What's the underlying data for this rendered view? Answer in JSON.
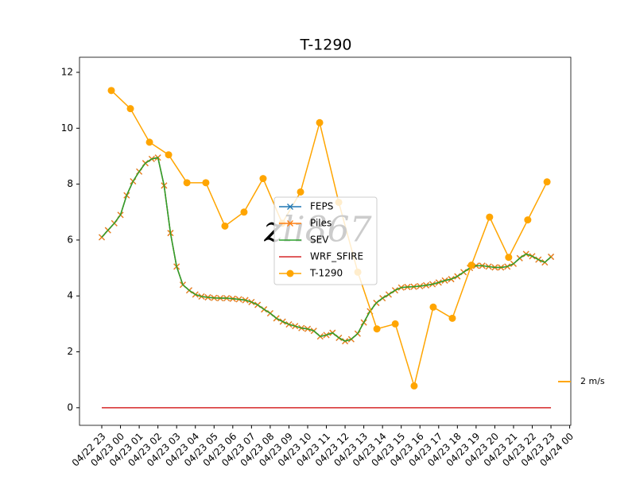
{
  "chart_data": {
    "type": "line",
    "title": "T-1290",
    "xlim": [
      -1.19,
      25.06
    ],
    "xticks": [
      {
        "value": 0,
        "label": "04/22 23"
      },
      {
        "value": 1,
        "label": "04/23 00"
      },
      {
        "value": 2,
        "label": "04/23 01"
      },
      {
        "value": 3,
        "label": "04/23 02"
      },
      {
        "value": 4,
        "label": "04/23 03"
      },
      {
        "value": 5,
        "label": "04/23 04"
      },
      {
        "value": 6,
        "label": "04/23 05"
      },
      {
        "value": 7,
        "label": "04/23 06"
      },
      {
        "value": 8,
        "label": "04/23 07"
      },
      {
        "value": 9,
        "label": "04/23 08"
      },
      {
        "value": 10,
        "label": "04/23 09"
      },
      {
        "value": 11,
        "label": "04/23 10"
      },
      {
        "value": 12,
        "label": "04/23 11"
      },
      {
        "value": 13,
        "label": "04/23 12"
      },
      {
        "value": 14,
        "label": "04/23 13"
      },
      {
        "value": 15,
        "label": "04/23 14"
      },
      {
        "value": 16,
        "label": "04/23 15"
      },
      {
        "value": 17,
        "label": "04/23 16"
      },
      {
        "value": 18,
        "label": "04/23 17"
      },
      {
        "value": 19,
        "label": "04/23 18"
      },
      {
        "value": 20,
        "label": "04/23 19"
      },
      {
        "value": 21,
        "label": "04/23 20"
      },
      {
        "value": 22,
        "label": "04/23 21"
      },
      {
        "value": 23,
        "label": "04/23 22"
      },
      {
        "value": 24,
        "label": "04/23 23"
      },
      {
        "value": 25,
        "label": "04/24 00"
      }
    ],
    "ylim": [
      -0.63,
      12.54
    ],
    "yticks": [
      0,
      2,
      4,
      6,
      8,
      10,
      12
    ],
    "legend_loc": "center",
    "series": [
      {
        "name": "FEPS",
        "color": "#1f77b4",
        "marker": "x",
        "x": [
          0,
          0.33,
          0.67,
          1,
          1.33,
          1.67,
          2,
          2.33,
          2.67,
          3,
          3.33,
          3.67,
          4,
          4.33,
          4.67,
          5,
          5.33,
          5.67,
          6,
          6.33,
          6.67,
          7,
          7.33,
          7.67,
          8,
          8.33,
          8.67,
          9,
          9.33,
          9.67,
          10,
          10.33,
          10.67,
          11,
          11.33,
          11.67,
          12,
          12.33,
          12.67,
          13,
          13.33,
          13.67,
          14,
          14.33,
          14.67,
          15,
          15.33,
          15.67,
          16,
          16.33,
          16.67,
          17,
          17.33,
          17.67,
          18,
          18.33,
          18.67,
          19,
          19.33,
          19.67,
          20,
          20.33,
          20.67,
          21,
          21.33,
          21.67,
          22,
          22.33,
          22.67,
          23,
          23.33,
          23.67,
          24
        ],
        "values": [
          6.1,
          6.35,
          6.6,
          6.9,
          7.6,
          8.1,
          8.45,
          8.75,
          8.9,
          8.95,
          7.95,
          6.25,
          5.05,
          4.4,
          4.2,
          4.05,
          3.98,
          3.95,
          3.93,
          3.92,
          3.92,
          3.9,
          3.88,
          3.85,
          3.78,
          3.68,
          3.52,
          3.38,
          3.2,
          3.08,
          2.98,
          2.92,
          2.85,
          2.82,
          2.75,
          2.55,
          2.6,
          2.68,
          2.5,
          2.38,
          2.45,
          2.65,
          3.05,
          3.45,
          3.75,
          3.92,
          4.05,
          4.2,
          4.3,
          4.32,
          4.33,
          4.35,
          4.38,
          4.42,
          4.48,
          4.55,
          4.6,
          4.7,
          4.85,
          5.0,
          5.08,
          5.08,
          5.05,
          5.02,
          5.02,
          5.05,
          5.15,
          5.35,
          5.5,
          5.42,
          5.3,
          5.2,
          5.4
        ]
      },
      {
        "name": "Piles",
        "color": "#ff7f0e",
        "marker": "x",
        "x": [
          0,
          0.33,
          0.67,
          1,
          1.33,
          1.67,
          2,
          2.33,
          2.67,
          3,
          3.33,
          3.67,
          4,
          4.33,
          4.67,
          5,
          5.33,
          5.67,
          6,
          6.33,
          6.67,
          7,
          7.33,
          7.67,
          8,
          8.33,
          8.67,
          9,
          9.33,
          9.67,
          10,
          10.33,
          10.67,
          11,
          11.33,
          11.67,
          12,
          12.33,
          12.67,
          13,
          13.33,
          13.67,
          14,
          14.33,
          14.67,
          15,
          15.33,
          15.67,
          16,
          16.33,
          16.67,
          17,
          17.33,
          17.67,
          18,
          18.33,
          18.67,
          19,
          19.33,
          19.67,
          20,
          20.33,
          20.67,
          21,
          21.33,
          21.67,
          22,
          22.33,
          22.67,
          23,
          23.33,
          23.67,
          24
        ],
        "values": [
          6.1,
          6.35,
          6.6,
          6.9,
          7.6,
          8.1,
          8.45,
          8.75,
          8.9,
          8.95,
          7.95,
          6.25,
          5.05,
          4.4,
          4.2,
          4.05,
          3.98,
          3.95,
          3.93,
          3.92,
          3.92,
          3.9,
          3.88,
          3.85,
          3.78,
          3.68,
          3.52,
          3.38,
          3.2,
          3.08,
          2.98,
          2.92,
          2.85,
          2.82,
          2.75,
          2.55,
          2.6,
          2.68,
          2.5,
          2.38,
          2.45,
          2.65,
          3.05,
          3.45,
          3.75,
          3.92,
          4.05,
          4.2,
          4.3,
          4.32,
          4.33,
          4.35,
          4.38,
          4.42,
          4.48,
          4.55,
          4.6,
          4.7,
          4.85,
          5.0,
          5.08,
          5.08,
          5.05,
          5.02,
          5.02,
          5.05,
          5.15,
          5.35,
          5.5,
          5.42,
          5.3,
          5.2,
          5.4
        ]
      },
      {
        "name": "SEV",
        "color": "#2ca02c",
        "marker": null,
        "x": [
          0,
          0.33,
          0.67,
          1,
          1.33,
          1.67,
          2,
          2.33,
          2.67,
          3,
          3.33,
          3.67,
          4,
          4.33,
          4.67,
          5,
          5.33,
          5.67,
          6,
          6.33,
          6.67,
          7,
          7.33,
          7.67,
          8,
          8.33,
          8.67,
          9,
          9.33,
          9.67,
          10,
          10.33,
          10.67,
          11,
          11.33,
          11.67,
          12,
          12.33,
          12.67,
          13,
          13.33,
          13.67,
          14,
          14.33,
          14.67,
          15,
          15.33,
          15.67,
          16,
          16.33,
          16.67,
          17,
          17.33,
          17.67,
          18,
          18.33,
          18.67,
          19,
          19.33,
          19.67,
          20,
          20.33,
          20.67,
          21,
          21.33,
          21.67,
          22,
          22.33,
          22.67,
          23,
          23.33,
          23.67,
          24
        ],
        "values": [
          6.1,
          6.35,
          6.6,
          6.9,
          7.6,
          8.1,
          8.45,
          8.75,
          8.9,
          8.95,
          7.95,
          6.25,
          5.05,
          4.4,
          4.2,
          4.05,
          3.98,
          3.95,
          3.93,
          3.92,
          3.92,
          3.9,
          3.88,
          3.85,
          3.78,
          3.68,
          3.52,
          3.38,
          3.2,
          3.08,
          2.98,
          2.92,
          2.85,
          2.82,
          2.75,
          2.55,
          2.6,
          2.68,
          2.5,
          2.38,
          2.45,
          2.65,
          3.05,
          3.45,
          3.75,
          3.92,
          4.05,
          4.2,
          4.3,
          4.32,
          4.33,
          4.35,
          4.38,
          4.42,
          4.48,
          4.55,
          4.6,
          4.7,
          4.85,
          5.0,
          5.08,
          5.08,
          5.05,
          5.02,
          5.02,
          5.05,
          5.15,
          5.35,
          5.5,
          5.42,
          5.3,
          5.2,
          5.4
        ]
      },
      {
        "name": "WRF_SFIRE",
        "color": "#d62728",
        "marker": null,
        "x": [
          0,
          24
        ],
        "values": [
          0,
          0
        ]
      },
      {
        "name": "T-1290",
        "color": "#ffa500",
        "marker": "o",
        "x": [
          0.51,
          1.53,
          2.55,
          3.57,
          4.55,
          5.56,
          6.58,
          7.6,
          8.62,
          9.64,
          10.62,
          11.64,
          12.66,
          13.68,
          14.7,
          15.68,
          16.69,
          17.71,
          18.73,
          19.75,
          20.72,
          21.74,
          22.76,
          23.79
        ],
        "values": [
          11.35,
          10.7,
          9.5,
          9.05,
          8.05,
          8.05,
          6.5,
          7.0,
          8.2,
          6.6,
          7.72,
          10.2,
          7.35,
          4.85,
          2.82,
          3.0,
          0.78,
          3.6,
          3.2,
          5.1,
          6.82,
          5.38,
          6.72,
          8.08
        ]
      }
    ],
    "quiver_key": "2 m/s",
    "watermark": "zli867"
  }
}
